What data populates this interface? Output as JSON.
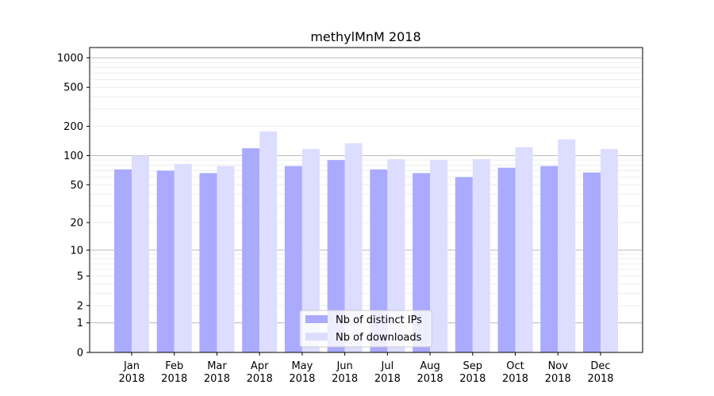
{
  "chart_data": {
    "type": "bar",
    "title": "methylMnM 2018",
    "xlabel": "",
    "ylabel": "",
    "yscale": "log10(1+y)",
    "ylim": [
      0,
      1300
    ],
    "yticks": [
      0,
      1,
      2,
      5,
      10,
      20,
      50,
      100,
      200,
      500,
      1000
    ],
    "grid": true,
    "legend_position": "bottom-center",
    "categories": [
      "Jan\n2018",
      "Feb\n2018",
      "Mar\n2018",
      "Apr\n2018",
      "May\n2018",
      "Jun\n2018",
      "Jul\n2018",
      "Aug\n2018",
      "Sep\n2018",
      "Oct\n2018",
      "Nov\n2018",
      "Dec\n2018"
    ],
    "series": [
      {
        "name": "Nb of distinct IPs",
        "color": "#aaaaff",
        "values": [
          72,
          70,
          66,
          119,
          78,
          90,
          72,
          66,
          60,
          75,
          78,
          67
        ]
      },
      {
        "name": "Nb of downloads",
        "color": "#ddddff",
        "values": [
          100,
          82,
          78,
          177,
          117,
          134,
          92,
          90,
          92,
          122,
          147,
          117
        ]
      }
    ]
  }
}
